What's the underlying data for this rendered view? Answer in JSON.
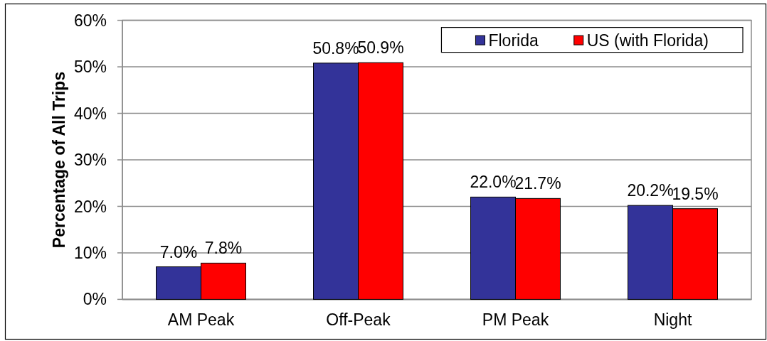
{
  "chart_data": {
    "type": "bar",
    "ylabel": "Percentage of All Trips",
    "categories": [
      "AM Peak",
      "Off-Peak",
      "PM Peak",
      "Night"
    ],
    "series": [
      {
        "name": "Florida",
        "color": "#333399",
        "values": [
          7.0,
          50.8,
          22.0,
          20.2
        ],
        "value_labels": [
          "7.0%",
          "50.8%",
          "22.0%",
          "20.2%"
        ]
      },
      {
        "name": "US (with Florida)",
        "color": "#ff0000",
        "values": [
          7.8,
          50.9,
          21.7,
          19.5
        ],
        "value_labels": [
          "7.8%",
          "50.9%",
          "21.7%",
          "19.5%"
        ]
      }
    ],
    "ylim": [
      0,
      60
    ],
    "yticks": [
      {
        "value": 0,
        "label": "0%"
      },
      {
        "value": 10,
        "label": "10%"
      },
      {
        "value": 20,
        "label": "20%"
      },
      {
        "value": 30,
        "label": "30%"
      },
      {
        "value": 40,
        "label": "40%"
      },
      {
        "value": 50,
        "label": "50%"
      },
      {
        "value": 60,
        "label": "60%"
      }
    ],
    "grid": "y",
    "legend": "top right"
  }
}
